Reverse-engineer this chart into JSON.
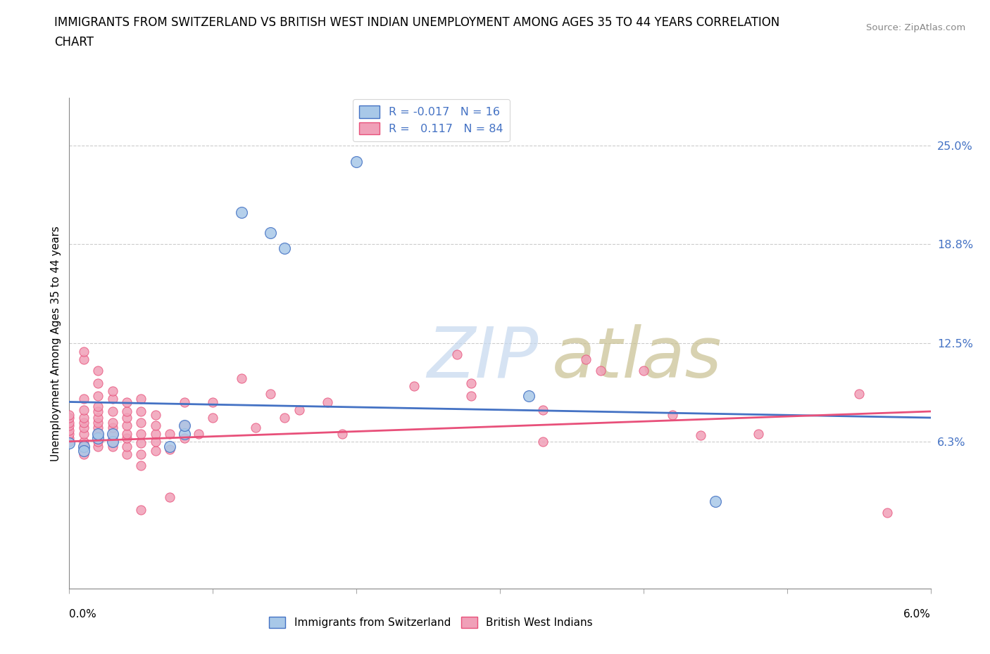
{
  "title_line1": "IMMIGRANTS FROM SWITZERLAND VS BRITISH WEST INDIAN UNEMPLOYMENT AMONG AGES 35 TO 44 YEARS CORRELATION",
  "title_line2": "CHART",
  "source": "Source: ZipAtlas.com",
  "ylabel": "Unemployment Among Ages 35 to 44 years",
  "y_axis_labels": [
    "6.3%",
    "12.5%",
    "18.8%",
    "25.0%"
  ],
  "y_axis_positions": [
    0.063,
    0.125,
    0.188,
    0.25
  ],
  "xlim": [
    0.0,
    0.06
  ],
  "ylim": [
    -0.03,
    0.28
  ],
  "color_swiss": "#a8c8e8",
  "color_bwi": "#f0a0b8",
  "line_color_swiss": "#4472c4",
  "line_color_bwi": "#e8507a",
  "swiss_points": [
    [
      0.0,
      0.062
    ],
    [
      0.001,
      0.06
    ],
    [
      0.001,
      0.057
    ],
    [
      0.002,
      0.065
    ],
    [
      0.002,
      0.068
    ],
    [
      0.003,
      0.063
    ],
    [
      0.003,
      0.068
    ],
    [
      0.007,
      0.06
    ],
    [
      0.008,
      0.068
    ],
    [
      0.008,
      0.073
    ],
    [
      0.012,
      0.208
    ],
    [
      0.014,
      0.195
    ],
    [
      0.015,
      0.185
    ],
    [
      0.02,
      0.24
    ],
    [
      0.032,
      0.092
    ],
    [
      0.045,
      0.025
    ]
  ],
  "bwi_points": [
    [
      0.0,
      0.063
    ],
    [
      0.0,
      0.065
    ],
    [
      0.0,
      0.068
    ],
    [
      0.0,
      0.07
    ],
    [
      0.0,
      0.073
    ],
    [
      0.0,
      0.075
    ],
    [
      0.0,
      0.078
    ],
    [
      0.0,
      0.08
    ],
    [
      0.001,
      0.055
    ],
    [
      0.001,
      0.06
    ],
    [
      0.001,
      0.063
    ],
    [
      0.001,
      0.068
    ],
    [
      0.001,
      0.072
    ],
    [
      0.001,
      0.075
    ],
    [
      0.001,
      0.078
    ],
    [
      0.001,
      0.083
    ],
    [
      0.001,
      0.09
    ],
    [
      0.001,
      0.115
    ],
    [
      0.001,
      0.12
    ],
    [
      0.002,
      0.06
    ],
    [
      0.002,
      0.063
    ],
    [
      0.002,
      0.068
    ],
    [
      0.002,
      0.072
    ],
    [
      0.002,
      0.075
    ],
    [
      0.002,
      0.078
    ],
    [
      0.002,
      0.082
    ],
    [
      0.002,
      0.085
    ],
    [
      0.002,
      0.092
    ],
    [
      0.002,
      0.1
    ],
    [
      0.002,
      0.108
    ],
    [
      0.003,
      0.06
    ],
    [
      0.003,
      0.063
    ],
    [
      0.003,
      0.067
    ],
    [
      0.003,
      0.072
    ],
    [
      0.003,
      0.075
    ],
    [
      0.003,
      0.082
    ],
    [
      0.003,
      0.09
    ],
    [
      0.003,
      0.095
    ],
    [
      0.004,
      0.055
    ],
    [
      0.004,
      0.06
    ],
    [
      0.004,
      0.065
    ],
    [
      0.004,
      0.068
    ],
    [
      0.004,
      0.073
    ],
    [
      0.004,
      0.078
    ],
    [
      0.004,
      0.082
    ],
    [
      0.004,
      0.088
    ],
    [
      0.005,
      0.048
    ],
    [
      0.005,
      0.055
    ],
    [
      0.005,
      0.062
    ],
    [
      0.005,
      0.068
    ],
    [
      0.005,
      0.075
    ],
    [
      0.005,
      0.082
    ],
    [
      0.005,
      0.09
    ],
    [
      0.005,
      0.02
    ],
    [
      0.006,
      0.057
    ],
    [
      0.006,
      0.063
    ],
    [
      0.006,
      0.068
    ],
    [
      0.006,
      0.073
    ],
    [
      0.006,
      0.08
    ],
    [
      0.007,
      0.028
    ],
    [
      0.007,
      0.058
    ],
    [
      0.007,
      0.068
    ],
    [
      0.008,
      0.065
    ],
    [
      0.008,
      0.073
    ],
    [
      0.008,
      0.088
    ],
    [
      0.009,
      0.068
    ],
    [
      0.01,
      0.078
    ],
    [
      0.01,
      0.088
    ],
    [
      0.012,
      0.103
    ],
    [
      0.013,
      0.072
    ],
    [
      0.014,
      0.093
    ],
    [
      0.015,
      0.078
    ],
    [
      0.016,
      0.083
    ],
    [
      0.018,
      0.088
    ],
    [
      0.019,
      0.068
    ],
    [
      0.024,
      0.098
    ],
    [
      0.027,
      0.118
    ],
    [
      0.028,
      0.1
    ],
    [
      0.028,
      0.092
    ],
    [
      0.033,
      0.083
    ],
    [
      0.033,
      0.063
    ],
    [
      0.036,
      0.115
    ],
    [
      0.037,
      0.108
    ],
    [
      0.04,
      0.108
    ],
    [
      0.042,
      0.08
    ],
    [
      0.044,
      0.067
    ],
    [
      0.048,
      0.068
    ],
    [
      0.055,
      0.093
    ],
    [
      0.057,
      0.018
    ]
  ],
  "swiss_line_x": [
    0.0,
    0.06
  ],
  "swiss_line_y": [
    0.088,
    0.078
  ],
  "bwi_line_x": [
    0.0,
    0.06
  ],
  "bwi_line_y": [
    0.063,
    0.082
  ]
}
